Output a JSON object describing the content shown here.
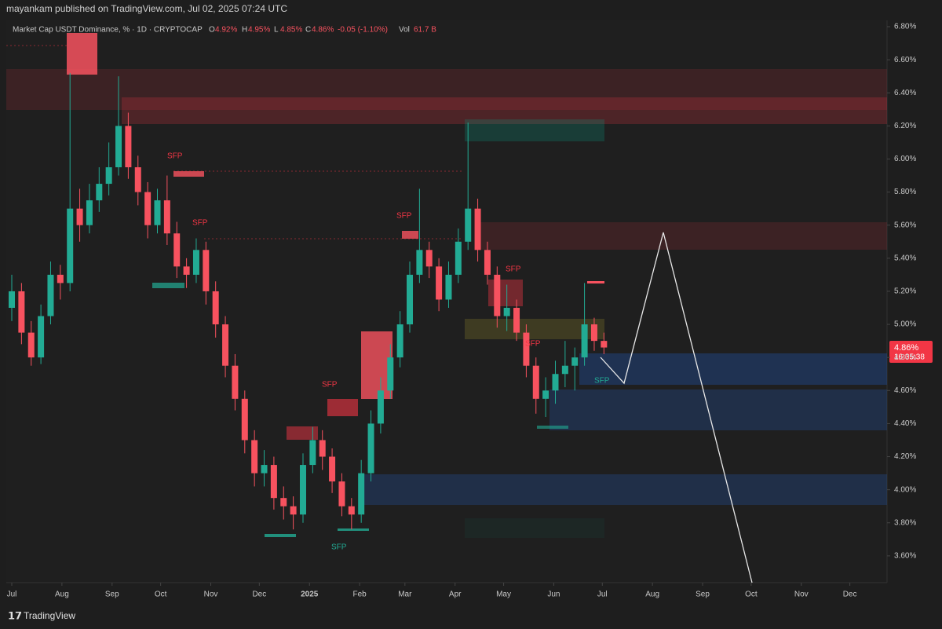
{
  "header": {
    "publisher": "mayankam published on TradingView.com, Jul 02, 2025 07:24 UTC"
  },
  "legend": {
    "symbol": "Market Cap USDT Dominance, % · 1D · CRYPTOCAP",
    "o_key": "O",
    "o": "4.92%",
    "h_key": "H",
    "h": "4.95%",
    "l_key": "L",
    "l": "4.85%",
    "c_key": "C",
    "c": "4.86%",
    "change": "-0.05 (-1.10%)",
    "vol_key": "Vol",
    "vol": "61.7 B"
  },
  "last_price": {
    "label": "4.86%",
    "countdown": "16:35:38"
  },
  "annotations": [
    "SFP",
    "SFP",
    "SFP",
    "SFP",
    "SFP",
    "SFP",
    "SFP",
    "SFP"
  ],
  "footer": {
    "brand": "TradingView"
  },
  "chart_data": {
    "type": "candlestick",
    "up_color": "#22ab94",
    "down_color": "#f7525f",
    "grid": false,
    "x": [
      0,
      6,
      12,
      18,
      24,
      30,
      36,
      42,
      48,
      54,
      60,
      66,
      72,
      78,
      84,
      90,
      96,
      102,
      108,
      114,
      120,
      126,
      132,
      138,
      144,
      150,
      156,
      162,
      168,
      174,
      180,
      186,
      192,
      198,
      204,
      210,
      216,
      222,
      228,
      234,
      240,
      246,
      252,
      258,
      264,
      270,
      276,
      282,
      288,
      294,
      300,
      306,
      312,
      318,
      324,
      330,
      336,
      342,
      348,
      354,
      360,
      366
    ],
    "open": [
      5.1,
      5.2,
      4.95,
      4.8,
      5.05,
      5.3,
      5.25,
      5.7,
      5.6,
      5.75,
      5.85,
      5.95,
      6.2,
      5.95,
      5.8,
      5.6,
      5.75,
      5.55,
      5.35,
      5.3,
      5.45,
      5.2,
      5.0,
      4.75,
      4.55,
      4.3,
      4.1,
      4.15,
      3.95,
      3.9,
      3.85,
      4.15,
      4.3,
      4.2,
      4.05,
      3.9,
      3.85,
      4.1,
      4.4,
      4.6,
      4.8,
      5.0,
      5.3,
      5.45,
      5.35,
      5.15,
      5.3,
      5.5,
      5.7,
      5.45,
      5.3,
      5.05,
      5.1,
      4.95,
      4.75,
      4.55,
      4.6,
      4.7,
      4.75,
      4.8,
      5.0,
      4.9
    ],
    "high": [
      5.3,
      5.25,
      5.02,
      5.12,
      5.38,
      5.36,
      6.52,
      5.82,
      5.85,
      5.95,
      6.1,
      6.5,
      6.28,
      6.02,
      5.86,
      5.82,
      5.9,
      5.62,
      5.4,
      5.52,
      5.5,
      5.26,
      5.05,
      4.82,
      4.6,
      4.36,
      4.24,
      4.2,
      4.02,
      3.96,
      4.22,
      4.38,
      4.36,
      4.25,
      4.1,
      3.95,
      4.18,
      4.48,
      4.68,
      4.88,
      5.08,
      5.38,
      5.82,
      5.5,
      5.4,
      5.38,
      5.58,
      6.22,
      5.76,
      5.5,
      5.35,
      5.24,
      5.15,
      5.0,
      4.8,
      4.68,
      4.78,
      4.9,
      4.86,
      5.25,
      5.04,
      4.95
    ],
    "low": [
      5.02,
      4.88,
      4.75,
      4.76,
      5.0,
      5.15,
      5.2,
      5.5,
      5.55,
      5.68,
      5.78,
      5.9,
      5.88,
      5.72,
      5.52,
      5.55,
      5.48,
      5.28,
      5.22,
      5.25,
      5.12,
      4.92,
      4.68,
      4.48,
      4.22,
      4.02,
      4.02,
      3.88,
      3.82,
      3.76,
      3.8,
      4.1,
      4.12,
      3.98,
      3.84,
      3.76,
      3.8,
      4.05,
      4.34,
      4.55,
      4.74,
      4.95,
      5.25,
      5.28,
      5.08,
      5.1,
      5.25,
      5.45,
      5.38,
      5.24,
      4.98,
      4.96,
      4.9,
      4.68,
      4.46,
      4.44,
      4.52,
      4.62,
      4.6,
      4.75,
      4.84,
      4.82
    ],
    "close": [
      5.2,
      4.95,
      4.8,
      5.05,
      5.3,
      5.25,
      5.7,
      5.6,
      5.75,
      5.85,
      5.95,
      6.2,
      5.95,
      5.8,
      5.6,
      5.75,
      5.55,
      5.35,
      5.3,
      5.45,
      5.2,
      5.0,
      4.75,
      4.55,
      4.3,
      4.1,
      4.15,
      3.95,
      3.9,
      3.85,
      4.15,
      4.3,
      4.2,
      4.05,
      3.9,
      3.85,
      4.1,
      4.4,
      4.6,
      4.8,
      5.0,
      5.3,
      5.45,
      5.35,
      5.15,
      5.3,
      5.5,
      5.7,
      5.45,
      5.3,
      5.05,
      5.1,
      4.95,
      4.75,
      4.55,
      4.6,
      4.7,
      4.75,
      4.8,
      5.0,
      4.9,
      4.86
    ],
    "xlim": [
      -3.4,
      541
    ],
    "xticks": [
      {
        "value": 0,
        "label": "Jul"
      },
      {
        "value": 31,
        "label": "Aug"
      },
      {
        "value": 62,
        "label": "Sep"
      },
      {
        "value": 92,
        "label": "Oct"
      },
      {
        "value": 123,
        "label": "Nov"
      },
      {
        "value": 153,
        "label": "Dec"
      },
      {
        "value": 184,
        "label": "2025"
      },
      {
        "value": 215,
        "label": "Feb"
      },
      {
        "value": 243,
        "label": "Mar"
      },
      {
        "value": 274,
        "label": "Apr"
      },
      {
        "value": 304,
        "label": "May"
      },
      {
        "value": 335,
        "label": "Jun"
      },
      {
        "value": 365,
        "label": "Jul"
      },
      {
        "value": 396,
        "label": "Aug"
      },
      {
        "value": 427,
        "label": "Sep"
      },
      {
        "value": 457,
        "label": "Oct"
      },
      {
        "value": 488,
        "label": "Nov"
      },
      {
        "value": 518,
        "label": "Dec"
      }
    ],
    "ylim": [
      3.438,
      6.838
    ],
    "yticks": [
      {
        "value": 3.6,
        "label": "3.60%"
      },
      {
        "value": 3.8,
        "label": "3.80%"
      },
      {
        "value": 4.0,
        "label": "4.00%"
      },
      {
        "value": 4.2,
        "label": "4.20%"
      },
      {
        "value": 4.4,
        "label": "4.40%"
      },
      {
        "value": 4.6,
        "label": "4.60%"
      },
      {
        "value": 4.8,
        "label": "4.80%"
      },
      {
        "value": 5.0,
        "label": "5.00%"
      },
      {
        "value": 5.2,
        "label": "5.20%"
      },
      {
        "value": 5.4,
        "label": "5.40%"
      },
      {
        "value": 5.6,
        "label": "5.60%"
      },
      {
        "value": 5.8,
        "label": "5.80%"
      },
      {
        "value": 6.0,
        "label": "6.00%"
      },
      {
        "value": 6.2,
        "label": "6.20%"
      },
      {
        "value": 6.4,
        "label": "6.40%"
      },
      {
        "value": 6.6,
        "label": "6.60%"
      },
      {
        "value": 6.8,
        "label": "6.80%"
      }
    ]
  }
}
